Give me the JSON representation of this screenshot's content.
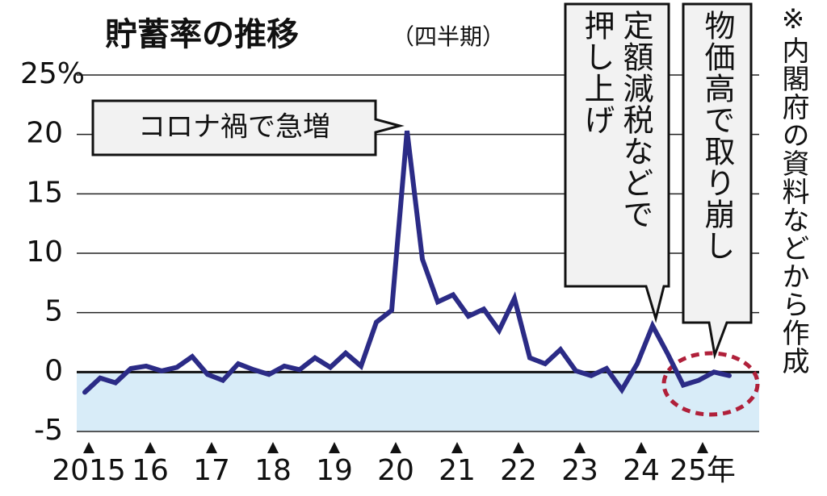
{
  "chart_data": {
    "type": "line",
    "title": "貯蓄率の推移",
    "subtitle": "（四半期）",
    "note": "※内閣府の資料などから作成",
    "annotations": [
      {
        "lines": [
          "コロナ禍で急増"
        ]
      },
      {
        "lines": [
          "定額減税などで",
          "押し上げ"
        ]
      },
      {
        "lines": [
          "物価高で取り崩し"
        ]
      }
    ],
    "categories": [
      "2015",
      null,
      null,
      null,
      "16",
      null,
      null,
      null,
      "17",
      null,
      null,
      null,
      "18",
      null,
      null,
      null,
      "19",
      null,
      null,
      null,
      "20",
      null,
      null,
      null,
      "21",
      null,
      null,
      null,
      "22",
      null,
      null,
      null,
      "23",
      null,
      null,
      null,
      "24",
      null,
      null,
      null,
      "25年",
      null,
      null
    ],
    "series": [
      {
        "name": "貯蓄率",
        "color": "#2b2b86",
        "values": [
          -1.7,
          -0.5,
          -0.9,
          0.3,
          0.5,
          0.1,
          0.4,
          1.3,
          -0.2,
          -0.7,
          0.7,
          0.2,
          -0.2,
          0.5,
          0.2,
          1.2,
          0.4,
          1.6,
          0.5,
          4.2,
          5.2,
          20.3,
          9.5,
          5.9,
          6.5,
          4.7,
          5.3,
          3.5,
          6.2,
          1.2,
          0.7,
          1.9,
          0.1,
          -0.3,
          0.3,
          -1.5,
          0.7,
          3.9,
          1.5,
          -1.1,
          -0.7,
          0.0,
          -0.3
        ]
      }
    ],
    "ylim": [
      -5,
      25
    ],
    "yticks": [
      -5,
      0,
      5,
      10,
      15,
      20,
      {
        "value": 25,
        "label": "25%"
      }
    ],
    "grid": true,
    "negative_fill": "#d8ecf8"
  }
}
